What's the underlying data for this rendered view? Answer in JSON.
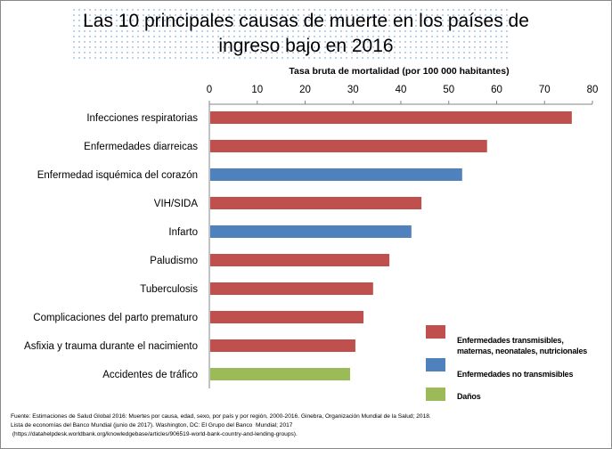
{
  "chart_data": {
    "type": "bar",
    "orientation": "horizontal",
    "title": "Las 10 principales causas de muerte en los países de ingreso bajo en 2016",
    "title_lines": [
      "Las 10 principales causas de muerte en los países de",
      "ingreso bajo en 2016"
    ],
    "xlabel": "Tasa  bruta de mortalidad  (por 100 000 habitantes)",
    "xlim": [
      0,
      80
    ],
    "xticks": [
      0,
      10,
      20,
      30,
      40,
      50,
      60,
      70,
      80
    ],
    "axis_position": "top",
    "grid": false,
    "categories": [
      "Infecciones respiratorias",
      "Enfermedades diarreicas",
      "Enfermedad isquémica del corazón",
      "VIH/SIDA",
      "Infarto",
      "Paludismo",
      "Tuberculosis",
      "Complicaciones del parto prematuro",
      "Asfixia y trauma durante el nacimiento",
      "Accidentes de tráfico"
    ],
    "values": [
      75.7,
      58.0,
      52.8,
      44.3,
      42.2,
      37.6,
      34.2,
      32.2,
      30.5,
      29.4
    ],
    "groups": [
      0,
      0,
      1,
      0,
      1,
      0,
      0,
      0,
      0,
      2
    ],
    "legend": [
      {
        "lines": [
          "Enfermedades transmisibles,",
          "maternas, neonatales, nutricionales"
        ],
        "color": "#c0504d"
      },
      {
        "lines": [
          "Enfermedades no transmisibles"
        ],
        "color": "#4f81bd"
      },
      {
        "lines": [
          "Daños"
        ],
        "color": "#9bbb59"
      }
    ],
    "legend_position": "bottom-right"
  },
  "source": [
    "Fuente: Estimaciones de Salud Global 2016: Muertes por causa, edad, sexo, por país y por región, 2000-2016. Ginebra, Organización Mundial de la Salud; 2018.",
    "Lista de economías del Banco Mundial (junio de 2017). Washington, DC: El Grupo del Banco  Mundial; 2017",
    " (https://datahelpdesk.worldbank.org/knowledgebase/articles/906519-world-bank-country-and-lending-groups)."
  ]
}
